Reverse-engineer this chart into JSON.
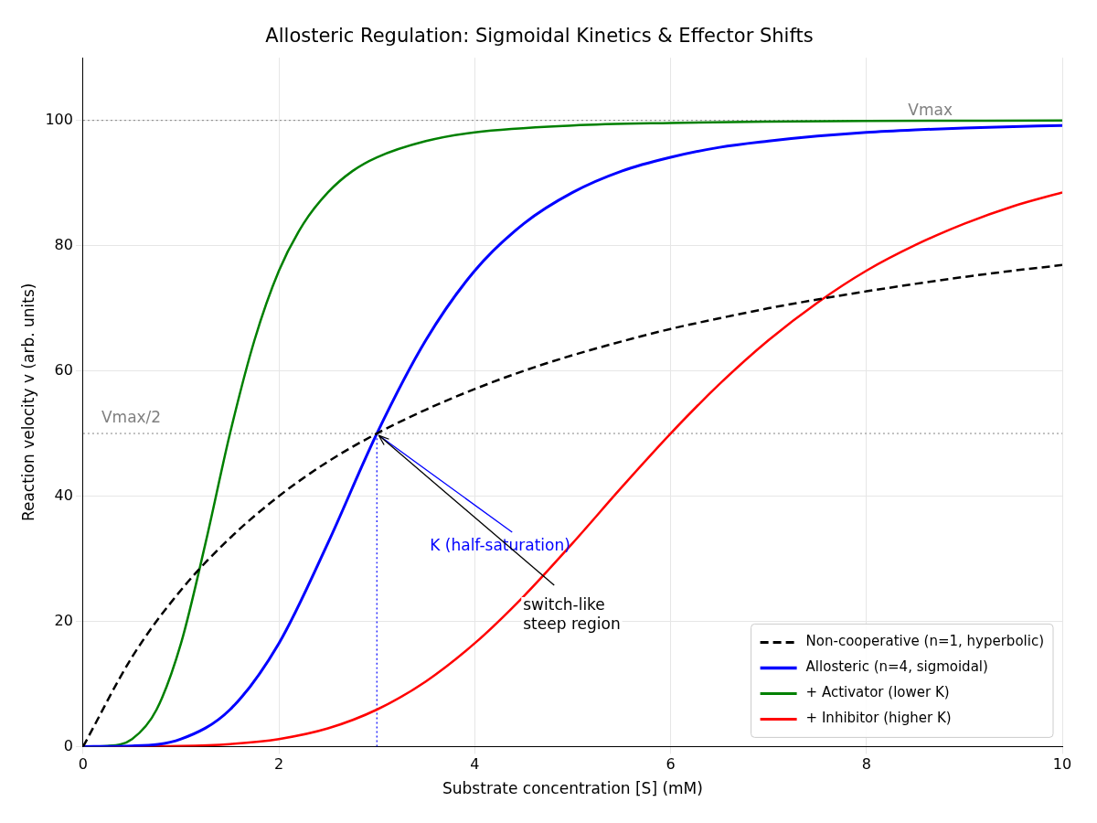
{
  "chart_data": {
    "type": "line",
    "title": "Allosteric Regulation: Sigmoidal Kinetics & Effector Shifts",
    "xlabel": "Substrate concentration [S] (mM)",
    "ylabel": "Reaction velocity v (arb. units)",
    "xlim": [
      0,
      10
    ],
    "ylim": [
      0,
      110
    ],
    "xticks": [
      0,
      2,
      4,
      6,
      8,
      10
    ],
    "yticks": [
      0,
      20,
      40,
      60,
      80,
      100
    ],
    "grid": true,
    "legend": "bottom right",
    "series": [
      {
        "name": "Non-cooperative (n=1, hyperbolic)",
        "color": "#000000",
        "line_style": "dashed",
        "x": [
          0,
          0.5,
          1,
          1.5,
          2,
          2.5,
          3,
          3.5,
          4,
          4.5,
          5,
          5.5,
          6,
          6.5,
          7,
          7.5,
          8,
          8.5,
          9,
          9.5,
          10
        ],
        "values": [
          0,
          14.3,
          25,
          33.3,
          40,
          45.5,
          50,
          53.8,
          57.1,
          60,
          62.5,
          64.7,
          66.7,
          68.4,
          70,
          71.4,
          72.7,
          73.9,
          75,
          76,
          76.9
        ]
      },
      {
        "name": "Allosteric (n=4, sigmoidal)",
        "color": "#0000ff",
        "x": [
          0,
          0.5,
          1,
          1.5,
          2,
          2.5,
          3,
          3.5,
          4,
          4.5,
          5,
          5.5,
          6,
          6.5,
          7,
          7.5,
          8,
          8.5,
          9,
          9.5,
          10
        ],
        "values": [
          0,
          0.1,
          1.2,
          5.9,
          16.5,
          32.5,
          50,
          64.9,
          76,
          83.5,
          88.5,
          91.9,
          94.1,
          95.7,
          96.7,
          97.5,
          98.1,
          98.5,
          98.8,
          99,
          99.2
        ]
      },
      {
        "name": "+ Activator (lower K)",
        "color": "#008000",
        "x": [
          0,
          0.25,
          0.5,
          0.75,
          1,
          1.25,
          1.5,
          1.75,
          2,
          2.25,
          2.5,
          2.75,
          3,
          3.5,
          4,
          5,
          6,
          7,
          8,
          10
        ],
        "values": [
          0,
          0.1,
          1.2,
          5.9,
          16.5,
          32.5,
          50,
          64.9,
          76,
          83.5,
          88.5,
          91.9,
          94.1,
          96.7,
          98.1,
          99.2,
          99.6,
          99.8,
          99.9,
          100
        ]
      },
      {
        "name": "+ Inhibitor (higher K)",
        "color": "#ff0000",
        "x": [
          0,
          1,
          1.5,
          2,
          2.5,
          3,
          3.5,
          4,
          4.5,
          5,
          5.5,
          6,
          6.5,
          7,
          7.5,
          8,
          8.5,
          9,
          9.5,
          10
        ],
        "values": [
          0,
          0.1,
          0.4,
          1.2,
          2.9,
          5.9,
          10.4,
          16.5,
          24,
          32.5,
          41.4,
          50,
          57.9,
          64.9,
          70.9,
          76,
          80.1,
          83.5,
          86.3,
          88.5
        ]
      },
      {
        "color": "#0000ff",
        "line_style": "dotted",
        "x": [
          3,
          3
        ],
        "values": [
          0,
          50
        ]
      }
    ],
    "ref_lines": [
      {
        "axis": "y",
        "value": 100,
        "label": "Vmax",
        "color": "#808080",
        "line_style": "dotted"
      },
      {
        "axis": "y",
        "value": 50,
        "label": "Vmax/2",
        "color": "#808080",
        "line_style": "dotted"
      }
    ],
    "annotations": [
      {
        "text": "K (half-saturation)",
        "x": 3,
        "y": 50
      },
      {
        "text": "switch-like\nsteep region",
        "x": 3,
        "y": 50
      }
    ]
  }
}
